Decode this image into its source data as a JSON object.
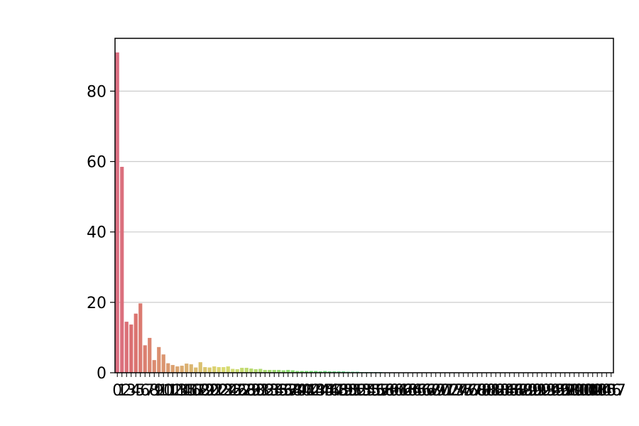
{
  "chart_data": {
    "type": "bar",
    "title": "",
    "xlabel": "",
    "ylabel": "",
    "ylim": [
      0,
      95
    ],
    "yticks": [
      0,
      20,
      40,
      60,
      80
    ],
    "grid": {
      "y": true,
      "x": false
    },
    "categories": [
      0,
      1,
      2,
      3,
      4,
      5,
      6,
      7,
      8,
      9,
      10,
      11,
      12,
      13,
      14,
      15,
      16,
      17,
      18,
      19,
      20,
      21,
      22,
      23,
      24,
      25,
      26,
      27,
      28,
      29,
      30,
      31,
      32,
      33,
      34,
      35,
      36,
      37,
      38,
      39,
      40,
      41,
      42,
      43,
      44,
      45,
      46,
      47,
      48,
      49,
      50,
      51,
      52,
      53,
      54,
      55,
      56,
      57,
      58,
      59,
      60,
      61,
      62,
      63,
      64,
      65,
      66,
      67,
      68,
      69,
      70,
      71,
      72,
      73,
      74,
      75,
      76,
      77,
      78,
      79,
      80,
      81,
      82,
      83,
      84,
      85,
      86,
      87,
      88,
      89,
      90,
      91,
      92,
      93,
      94,
      95,
      96,
      97,
      98,
      99,
      100,
      101,
      102,
      103,
      104,
      105,
      106,
      107
    ],
    "values": [
      91,
      58.5,
      14.5,
      13.7,
      16.8,
      19.7,
      7.8,
      9.9,
      3.6,
      7.3,
      5.2,
      2.7,
      2.2,
      1.8,
      2.0,
      2.6,
      2.4,
      1.5,
      3.0,
      1.6,
      1.5,
      1.8,
      1.6,
      1.6,
      1.8,
      1.1,
      1.0,
      1.4,
      1.4,
      1.2,
      1.0,
      1.1,
      0.8,
      0.8,
      0.8,
      0.8,
      0.7,
      0.8,
      0.7,
      0.5,
      0.5,
      0.5,
      0.5,
      0.5,
      0.4,
      0.5,
      0.4,
      0.4,
      0.4,
      0.4,
      0.3,
      0.3,
      0.3,
      0.2,
      0.2,
      0.2,
      0.2,
      0.2,
      0.1,
      0.1,
      0.1,
      0.1,
      0.1,
      0.1,
      0.1,
      0.1,
      0.1,
      0.1,
      0.1,
      0.1,
      0.1,
      0.1,
      0.1,
      0.1,
      0.1,
      0.1,
      0.1,
      0.1,
      0.1,
      0.1,
      0.1,
      0.1,
      0.1,
      0.1,
      0.1,
      0.1,
      0.1,
      0.1,
      0.1,
      0.1,
      0.1,
      0.1,
      0.1,
      0.1,
      0.1,
      0.1,
      0.1,
      0.1,
      0.1,
      0.1,
      0.1,
      0.1,
      0.1,
      0.1,
      0.1,
      0.1,
      0.1,
      0.1
    ]
  }
}
